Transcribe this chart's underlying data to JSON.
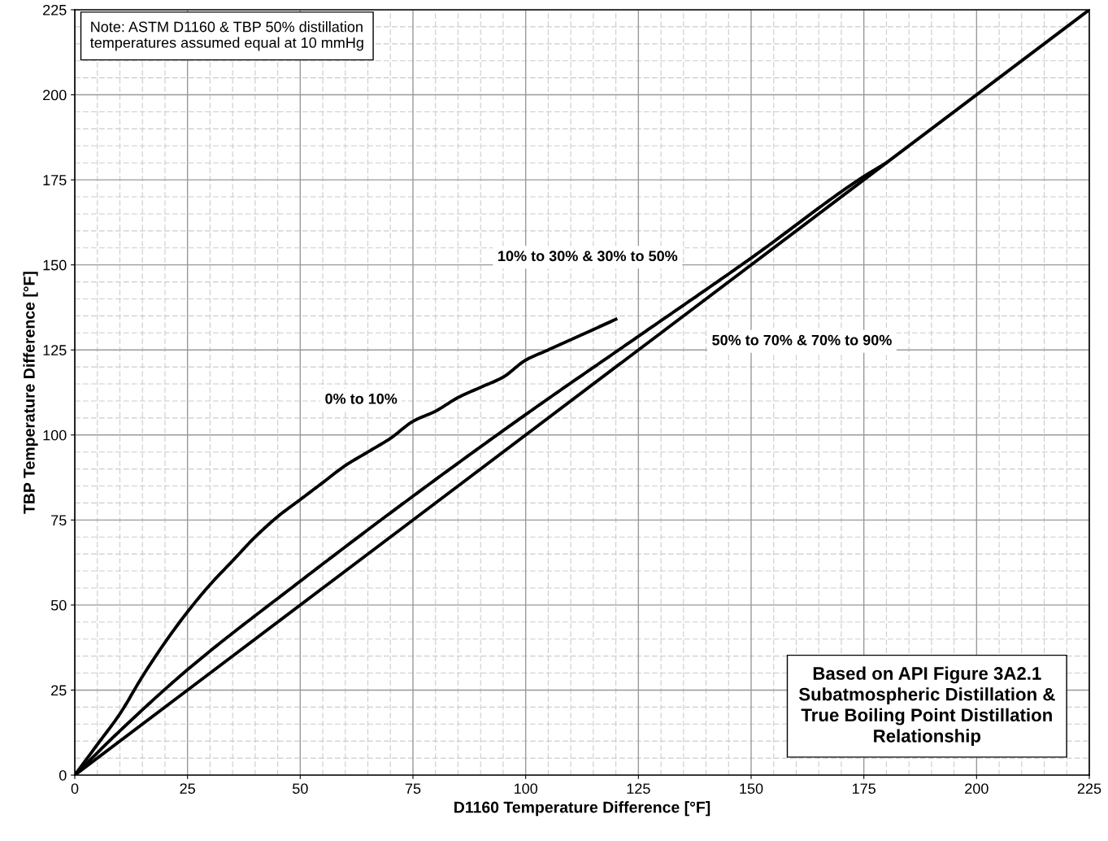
{
  "chart_data": {
    "type": "line",
    "xlabel": "D1160 Temperature Difference [°F]",
    "ylabel": "TBP Temperature Difference [°F]",
    "xlim": [
      0,
      225
    ],
    "ylim": [
      0,
      225
    ],
    "xticks": [
      0,
      25,
      50,
      75,
      100,
      125,
      150,
      175,
      200,
      225
    ],
    "yticks": [
      0,
      25,
      50,
      75,
      100,
      125,
      150,
      175,
      200,
      225
    ],
    "grid": true,
    "marker": "none",
    "line_style": "solid",
    "series": [
      {
        "name": "0% to 10%",
        "color": "#000000",
        "x": [
          0,
          5,
          10,
          15,
          20,
          25,
          30,
          35,
          40,
          45,
          50,
          55,
          60,
          65,
          70,
          75,
          80,
          85,
          90,
          95,
          100,
          105,
          110,
          115,
          120
        ],
        "values": [
          0,
          9,
          18,
          29,
          39,
          48,
          56,
          63,
          70,
          76,
          81,
          86,
          91,
          95,
          99,
          104,
          107,
          111,
          114,
          117,
          122,
          125,
          128,
          131,
          134
        ]
      },
      {
        "name": "10% to 30% & 30% to 50%",
        "color": "#000000",
        "x": [
          0,
          10,
          25,
          50,
          75,
          100,
          125,
          150,
          175,
          180
        ],
        "values": [
          0,
          13,
          31,
          57,
          82,
          106,
          129,
          152,
          176,
          180
        ]
      },
      {
        "name": "50% to 70% & 70% to 90%",
        "color": "#000000",
        "x": [
          0,
          225
        ],
        "values": [
          0,
          225
        ]
      }
    ],
    "annotations": [
      "Note: ASTM D1160 & TBP 50% distillation\ntemperatures assumed equal at 10 mmHg",
      "Based on API Figure 3A2.1\nSubatmospheric Distillation &\nTrue Boiling Point Distillation\nRelationship"
    ]
  }
}
